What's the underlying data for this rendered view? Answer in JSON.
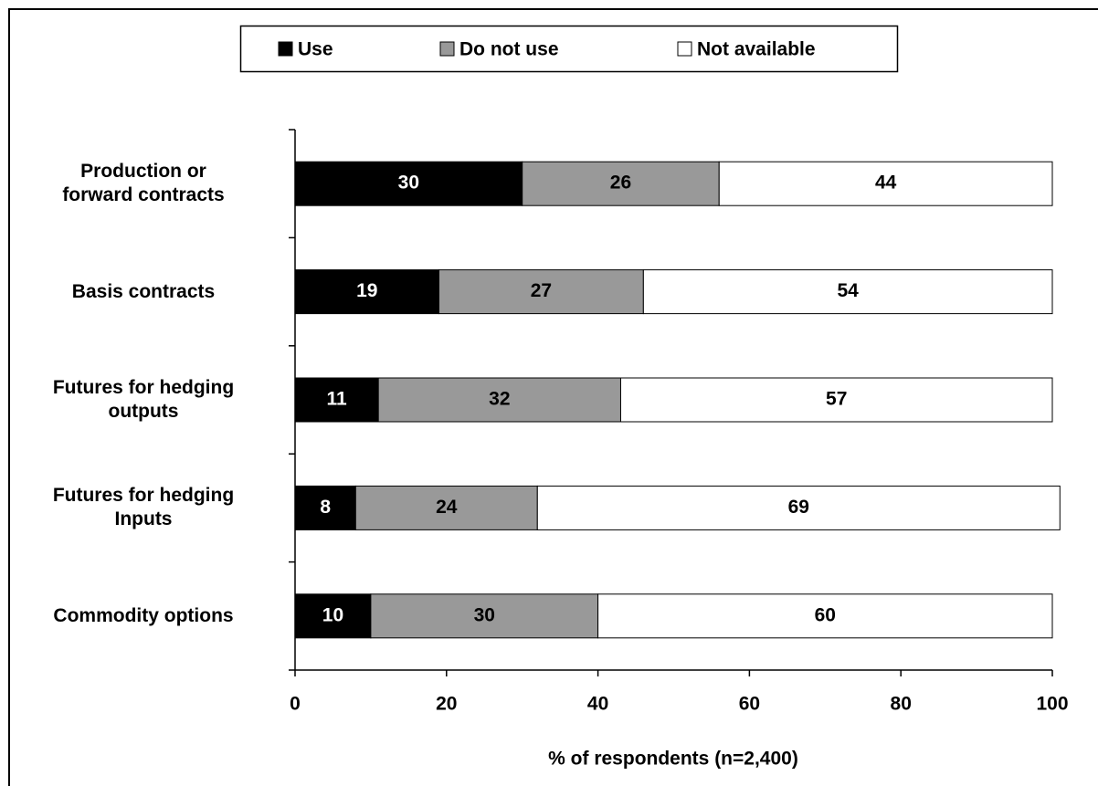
{
  "chart_data": {
    "type": "stacked-bar-horizontal",
    "categories": [
      "Production or\nforward contracts",
      "Basis contracts",
      "Futures for hedging\noutputs",
      "Futures for hedging\nInputs",
      "Commodity options"
    ],
    "series": [
      {
        "name": "Use",
        "color": "#000000",
        "values": [
          30,
          19,
          11,
          8,
          10
        ]
      },
      {
        "name": "Do not use",
        "color": "#999999",
        "values": [
          26,
          27,
          32,
          24,
          30
        ]
      },
      {
        "name": "Not available",
        "color": "#ffffff",
        "values": [
          44,
          54,
          57,
          69,
          60
        ]
      }
    ],
    "x_label": "% of respondents (n=2,400)",
    "xlim": [
      0,
      100
    ],
    "xticks": [
      0,
      20,
      40,
      60,
      80,
      100
    ]
  }
}
